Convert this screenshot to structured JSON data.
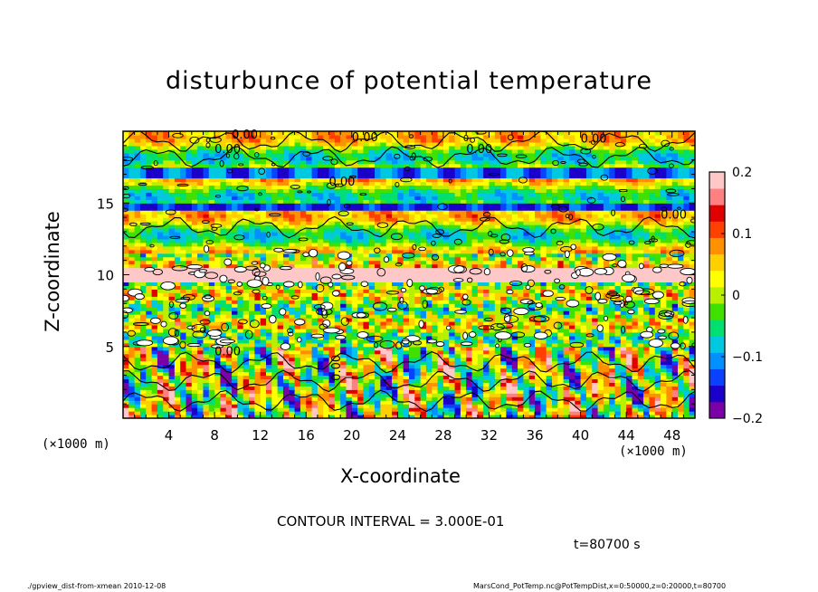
{
  "chart_data": {
    "type": "heatmap",
    "title": "disturbunce of potential temperature",
    "xlabel": "X-coordinate",
    "ylabel": "Z-coordinate",
    "x_unit": "(×1000 m)",
    "xlim": [
      0,
      50
    ],
    "ylim": [
      0,
      20
    ],
    "x_ticks": [
      4,
      8,
      12,
      16,
      20,
      24,
      28,
      32,
      36,
      40,
      44,
      48
    ],
    "y_ticks": [
      5,
      10,
      15
    ],
    "colorbar": {
      "range": [
        -0.2,
        0.2
      ],
      "tick_values": [
        0.2,
        0.1,
        0,
        -0.1,
        -0.2
      ],
      "tick_labels": [
        "0.2",
        "0.1",
        "0",
        "−0.1",
        "−0.2"
      ]
    },
    "contour_labels": [
      "0.00",
      "0.00",
      "0.00",
      "0.00",
      "0.00",
      "0.00",
      "0.00",
      "0.00",
      "0.00"
    ],
    "contour_interval_text": "CONTOUR INTERVAL = 3.000E-01",
    "time_text": "t=80700 s"
  },
  "footer": {
    "left": "./gpview_dist-from-xmean  2010-12-08",
    "right": "MarsCond_PotTemp.nc@PotTempDist,x=0:50000,z=0:20000,t=80700"
  },
  "colors": {
    "colorbar": [
      "#7a00a8",
      "#1a00c8",
      "#0a40ff",
      "#0090ff",
      "#00c8e0",
      "#00e070",
      "#40e000",
      "#b8f000",
      "#ffff00",
      "#ffd000",
      "#ff9000",
      "#ff4000",
      "#e00000",
      "#ff8080",
      "#ffc8c8"
    ]
  }
}
